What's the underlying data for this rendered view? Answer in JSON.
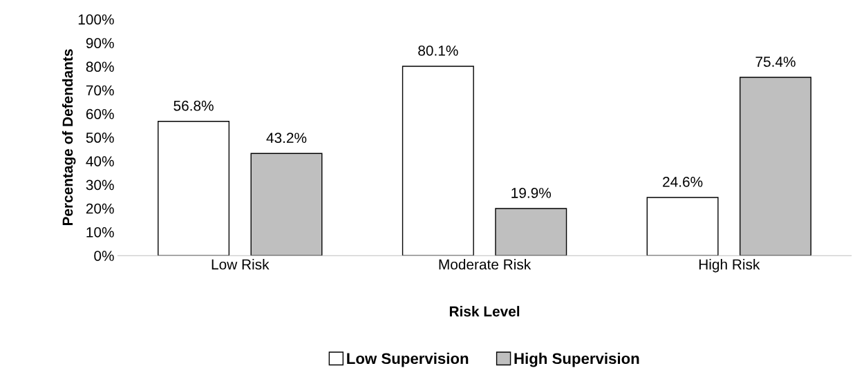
{
  "chart_data": {
    "type": "bar",
    "xlabel": "Risk Level",
    "ylabel": "Percentage of Defendants",
    "categories": [
      "Low Risk",
      "Moderate Risk",
      "High Risk"
    ],
    "series": [
      {
        "name": "Low Supervision",
        "color": "#ffffff",
        "values": [
          56.8,
          80.1,
          24.6
        ],
        "value_labels": [
          "56.8%",
          "80.1%",
          "24.6%"
        ]
      },
      {
        "name": "High Supervision",
        "color": "#bfbfbf",
        "values": [
          43.2,
          19.9,
          75.4
        ],
        "value_labels": [
          "43.2%",
          "19.9%",
          "75.4%"
        ]
      }
    ],
    "ylim": [
      0,
      100
    ],
    "yticks": [
      {
        "value": 0,
        "label": "0%"
      },
      {
        "value": 10,
        "label": "10%"
      },
      {
        "value": 20,
        "label": "20%"
      },
      {
        "value": 30,
        "label": "30%"
      },
      {
        "value": 40,
        "label": "40%"
      },
      {
        "value": 50,
        "label": "50%"
      },
      {
        "value": 60,
        "label": "60%"
      },
      {
        "value": 70,
        "label": "70%"
      },
      {
        "value": 80,
        "label": "80%"
      },
      {
        "value": 90,
        "label": "90%"
      },
      {
        "value": 100,
        "label": "100%"
      }
    ],
    "grid": false,
    "legend": "bottom"
  }
}
